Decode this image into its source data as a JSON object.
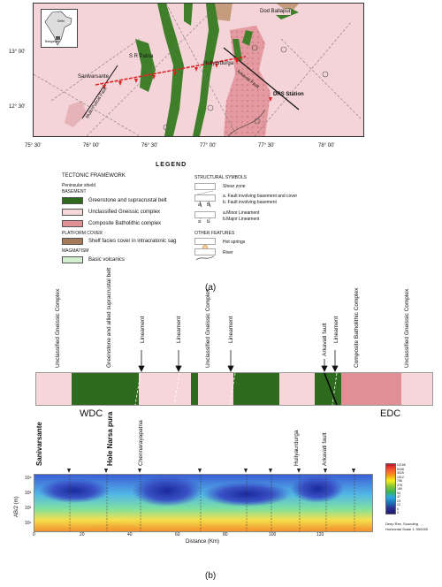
{
  "map": {
    "places": {
      "dod_ballapur": "Dod Ballapur",
      "srirangapatna": "S R Patna",
      "sanivarsante": "Sanivarsante",
      "huliyaurdurga": "Huliyurdurga",
      "drs_station": "DRS Station",
      "inset_a": "Delhi",
      "inset_b": "Bangalore"
    },
    "faults": {
      "arkavati": "Arkavati Fault",
      "mulki_pulicat": "Mulki Pulicat Fault"
    },
    "lat_labels": [
      "13° 00'",
      "12° 30'"
    ],
    "lon_labels": [
      "75° 30'",
      "76° 00'",
      "76° 30'",
      "77° 00'",
      "77° 30'",
      "78° 00'"
    ]
  },
  "legend": {
    "title": "LEGEND",
    "tectonic": "TECTONIC FRAMEWORK",
    "peninsular": "Peninsular shield",
    "basement": "BASEMENT",
    "items_basement": [
      "Greenstone and supracrustal belt",
      "Unclassified Gneissic complex",
      "Composite Batholithic complex"
    ],
    "platform": "PLATFORM COVER",
    "shelf": "Shelf facies cover in intracratonic sag",
    "magmatism": "MAGMATISM",
    "basic": "Basic volcanics",
    "structural": "STRUCTURAL SYMBOLS",
    "shear": "Shear zone",
    "fault_a": "a. Fault involving basement and cover",
    "fault_b": "b. Fault involving basement",
    "lin_a": "a.Minor Lineament",
    "lin_b": "b.Major Lineament",
    "ab_a": "a",
    "ab_b": "b",
    "other": "OTHER FEATURES",
    "hot": "Hot springs",
    "river": "River"
  },
  "caption_a": "(a)",
  "caption_b": "(b)",
  "section": {
    "top_labels": [
      "Unclassified Gneissic Complex",
      "Greenstone and allied supracrustal belt",
      "Lineament",
      "Lineament",
      "Unclassified Gneissic Complex",
      "Lineament",
      "Arkavati fault",
      "Lineament",
      "Composite Batholithic Complex",
      "Unclassified Gneissic Complex"
    ],
    "wdc": "WDC",
    "edc": "EDC",
    "bottom_labels": [
      "Sanivarsante",
      "Hole Narsa pura",
      "Chennarayapatna",
      "Huliyaurdurga",
      "Arkavati fault"
    ]
  },
  "mt_plot": {
    "ylabel": "AB/2 (m)",
    "xlabel": "Distance (Km)",
    "yticks": [
      "10⁴",
      "10³",
      "10²",
      "10¹"
    ],
    "xticks": [
      "0",
      "20",
      "40",
      "60",
      "80",
      "100",
      "120"
    ],
    "legend_values": [
      "12165",
      "6048",
      "3025",
      "1512",
      "756",
      "378",
      "189",
      "94",
      "47",
      "23",
      "12",
      "6",
      "3"
    ],
    "legend_note_1": "Deep Res. Sounding",
    "legend_note_2": "Horizontal Scale 1: 500000"
  },
  "colors": {
    "gneiss": "#f6d6d9",
    "greenstone": "#2f6b1e",
    "batholith": "#e08f95",
    "shelf": "#a57a5b",
    "volcanic": "#d3efd0"
  }
}
